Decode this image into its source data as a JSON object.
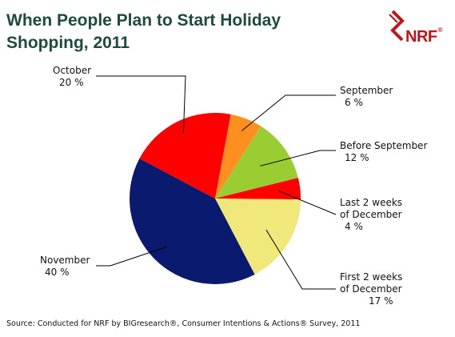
{
  "header": {
    "title_line1": "When People Plan to Start Holiday",
    "title_line2": "Shopping, 2011"
  },
  "logo": {
    "text": "NRF",
    "mark": "®"
  },
  "chart_data": {
    "type": "pie",
    "title": "When People Plan to Start Holiday Shopping, 2011",
    "slices": [
      {
        "label": "Before September",
        "line1": "Before September",
        "line2": "",
        "value": 12,
        "value_label": "12 %",
        "color": "#9acd32"
      },
      {
        "label": "Last 2 weeks of December",
        "line1": "Last 2 weeks",
        "line2": "of December",
        "value": 4,
        "value_label": "4 %",
        "color": "#ff0000"
      },
      {
        "label": "First 2 weeks of December",
        "line1": "First 2 weeks",
        "line2": "of December",
        "value": 17,
        "value_label": "17 %",
        "color": "#f0e87a"
      },
      {
        "label": "November",
        "line1": "November",
        "line2": "",
        "value": 40,
        "value_label": "40 %",
        "color": "#0a1a6e"
      },
      {
        "label": "October",
        "line1": "October",
        "line2": "",
        "value": 20,
        "value_label": "20 %",
        "color": "#ff0000"
      },
      {
        "label": "September",
        "line1": "September",
        "line2": "",
        "value": 6,
        "value_label": "6 %",
        "color": "#ff9020"
      }
    ]
  },
  "footer": {
    "source": "Source: Conducted for NRF by BIGresearch®, Consumer Intentions & Actions® Survey, 2011"
  }
}
